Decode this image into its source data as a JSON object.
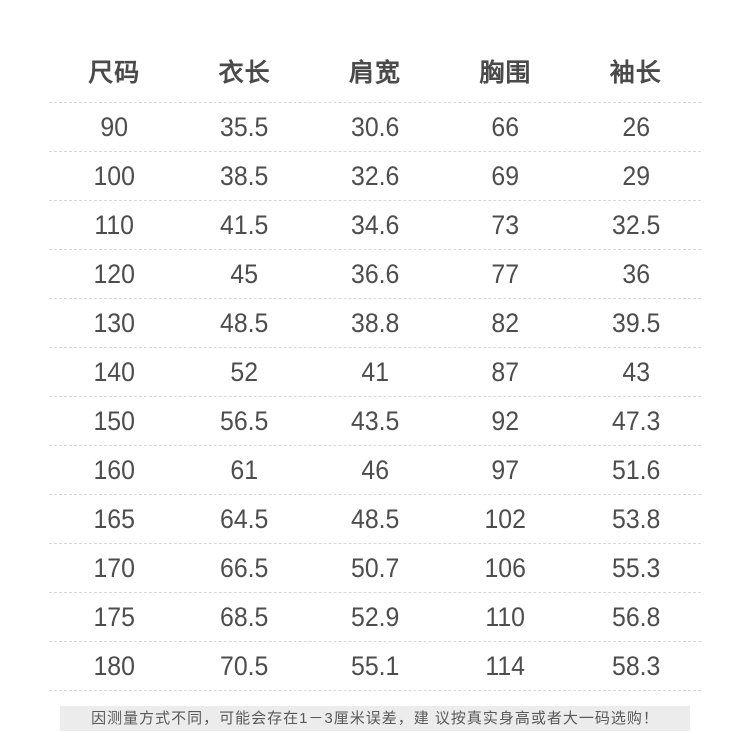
{
  "chart_data": {
    "type": "table",
    "title": "",
    "columns": [
      "尺码",
      "衣长",
      "肩宽",
      "胸围",
      "袖长"
    ],
    "rows": [
      [
        "90",
        "35.5",
        "30.6",
        "66",
        "26"
      ],
      [
        "100",
        "38.5",
        "32.6",
        "69",
        "29"
      ],
      [
        "110",
        "41.5",
        "34.6",
        "73",
        "32.5"
      ],
      [
        "120",
        "45",
        "36.6",
        "77",
        "36"
      ],
      [
        "130",
        "48.5",
        "38.8",
        "82",
        "39.5"
      ],
      [
        "140",
        "52",
        "41",
        "87",
        "43"
      ],
      [
        "150",
        "56.5",
        "43.5",
        "92",
        "47.3"
      ],
      [
        "160",
        "61",
        "46",
        "97",
        "51.6"
      ],
      [
        "165",
        "64.5",
        "48.5",
        "102",
        "53.8"
      ],
      [
        "170",
        "66.5",
        "50.7",
        "106",
        "55.3"
      ],
      [
        "175",
        "68.5",
        "52.9",
        "110",
        "56.8"
      ],
      [
        "180",
        "70.5",
        "55.1",
        "114",
        "58.3"
      ]
    ]
  },
  "note": {
    "text": "因测量方式不同，可能会存在1－3厘米误差，建 议按真实身高或者大一码选购！"
  },
  "colors": {
    "header_text": "#4a4a4a",
    "cell_text": "#4d4d4d",
    "row_divider_dashed": "#d8d8d8",
    "note_background": "#ececec",
    "note_text": "#595959",
    "bottom_divider": "#e2e2e2"
  }
}
